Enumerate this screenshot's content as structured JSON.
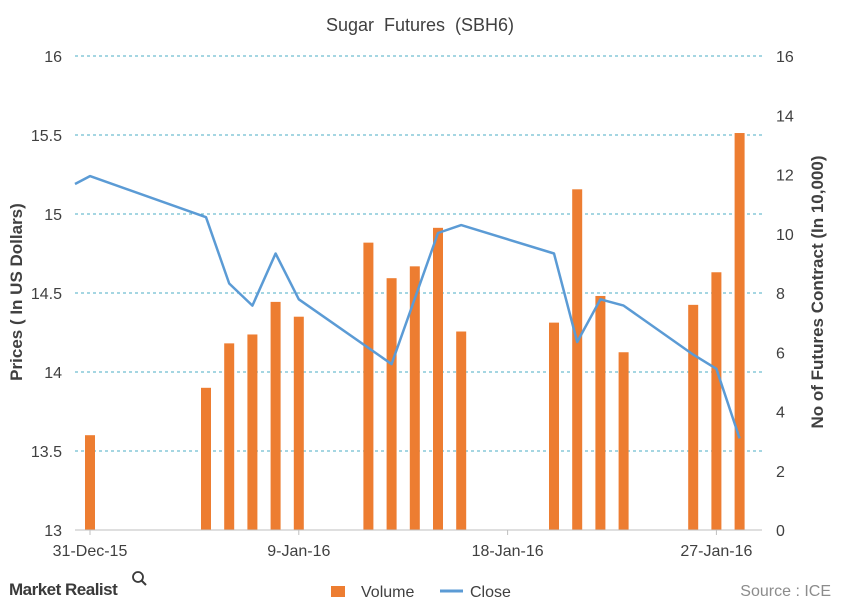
{
  "chart_data": {
    "type": "bar+line",
    "title": "Sugar  Futures  (SBH6)",
    "ylabel_left": "Prices ( In US Dollars)",
    "ylabel_right": "No of Futures Contract (In 10,000)",
    "ylim_left": [
      13,
      16
    ],
    "yticks_left": [
      "13",
      "13.5",
      "14",
      "14.5",
      "15",
      "15.5",
      "16"
    ],
    "ylim_right": [
      0,
      16
    ],
    "yticks_right": [
      "0",
      "2",
      "4",
      "6",
      "8",
      "10",
      "12",
      "14",
      "16"
    ],
    "xlim_days": [
      0,
      28
    ],
    "x_ticks": [
      {
        "label": "31-Dec-15",
        "day": 0
      },
      {
        "label": "9-Jan-16",
        "day": 9
      },
      {
        "label": "18-Jan-16",
        "day": 18
      },
      {
        "label": "27-Jan-16",
        "day": 27
      }
    ],
    "gridlines": "left-axis ticks, dashed",
    "legend_position": "bottom",
    "series": [
      {
        "name": "Volume",
        "axis": "right",
        "kind": "bar",
        "color": "#ed7d31",
        "points": [
          {
            "date": "31-Dec-15",
            "value": 3.2
          },
          {
            "date": "5-Jan-16",
            "value": 4.8
          },
          {
            "date": "6-Jan-16",
            "value": 6.3
          },
          {
            "date": "7-Jan-16",
            "value": 6.6
          },
          {
            "date": "8-Jan-16",
            "value": 7.7
          },
          {
            "date": "9-Jan-16",
            "value": 7.2
          },
          {
            "date": "12-Jan-16",
            "value": 9.7
          },
          {
            "date": "13-Jan-16",
            "value": 8.5
          },
          {
            "date": "14-Jan-16",
            "value": 8.9
          },
          {
            "date": "15-Jan-16",
            "value": 10.2
          },
          {
            "date": "16-Jan-16",
            "value": 6.7
          },
          {
            "date": "20-Jan-16",
            "value": 7.0
          },
          {
            "date": "21-Jan-16",
            "value": 11.5
          },
          {
            "date": "22-Jan-16",
            "value": 7.9
          },
          {
            "date": "23-Jan-16",
            "value": 6.0
          },
          {
            "date": "26-Jan-16",
            "value": 7.6
          },
          {
            "date": "27-Jan-16",
            "value": 8.7
          },
          {
            "date": "28-Jan-16",
            "value": 13.4
          }
        ]
      },
      {
        "name": "Close",
        "axis": "left",
        "kind": "line",
        "color": "#5b9bd5",
        "points": [
          {
            "date": "30-Dec-15",
            "value": 15.19
          },
          {
            "date": "31-Dec-15",
            "value": 15.24
          },
          {
            "date": "5-Jan-16",
            "value": 14.98
          },
          {
            "date": "6-Jan-16",
            "value": 14.56
          },
          {
            "date": "7-Jan-16",
            "value": 14.42
          },
          {
            "date": "8-Jan-16",
            "value": 14.75
          },
          {
            "date": "9-Jan-16",
            "value": 14.46
          },
          {
            "date": "13-Jan-16",
            "value": 14.05
          },
          {
            "date": "15-Jan-16",
            "value": 14.88
          },
          {
            "date": "16-Jan-16",
            "value": 14.93
          },
          {
            "date": "20-Jan-16",
            "value": 14.75
          },
          {
            "date": "21-Jan-16",
            "value": 14.19
          },
          {
            "date": "22-Jan-16",
            "value": 14.46
          },
          {
            "date": "23-Jan-16",
            "value": 14.42
          },
          {
            "date": "26-Jan-16",
            "value": 14.11
          },
          {
            "date": "27-Jan-16",
            "value": 14.02
          },
          {
            "date": "28-Jan-16",
            "value": 13.58
          }
        ]
      }
    ]
  },
  "source": "Source : ICE",
  "brand": "Market Realist",
  "colors": {
    "grid": "#4bacc6",
    "axis": "#bfbfbf",
    "text": "#404040"
  }
}
